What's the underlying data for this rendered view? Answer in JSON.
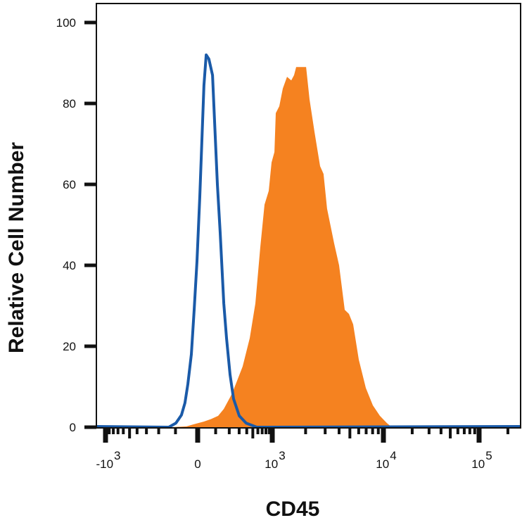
{
  "chart_data": {
    "type": "area",
    "title": "",
    "xlabel": "CD45",
    "ylabel": "Relative Cell Number",
    "x_scale": "biexponential",
    "xlim": [
      -1200,
      200000
    ],
    "ylim": [
      0,
      105
    ],
    "grid": false,
    "y_ticks": [
      0,
      20,
      40,
      60,
      80,
      100
    ],
    "x_ticks": [
      {
        "value": -1000,
        "base": "-10",
        "exp": "3"
      },
      {
        "value": 0,
        "base": "0",
        "exp": ""
      },
      {
        "value": 1000,
        "base": "10",
        "exp": "3"
      },
      {
        "value": 10000,
        "base": "10",
        "exp": "4"
      },
      {
        "value": 100000,
        "base": "10",
        "exp": "5"
      }
    ],
    "series": [
      {
        "style": "filled",
        "color": "#f58220",
        "x": [
          -124,
          -48,
          -18,
          33,
          72,
          116,
          156,
          226,
          343,
          447,
          549,
          655,
          761,
          884,
          975,
          1046,
          1077,
          1158,
          1247,
          1360,
          1485,
          1575,
          1646,
          2022,
          2171,
          2404,
          2700,
          2902,
          3120,
          3613,
          4000,
          4496,
          4907,
          5353,
          6011,
          6950,
          8036,
          9297,
          10890,
          12260
        ],
        "y": [
          0,
          0.2,
          0.7,
          1.4,
          2,
          2.8,
          4.5,
          8.3,
          15,
          22,
          30.6,
          44.5,
          55,
          58.4,
          65.4,
          68,
          77.6,
          79.3,
          83.7,
          86.6,
          85.7,
          87,
          89,
          89,
          81,
          73,
          64.5,
          62.6,
          54,
          45.4,
          40,
          29,
          28,
          25.4,
          16.7,
          9.7,
          5.4,
          2.8,
          1,
          0
        ]
      },
      {
        "style": "outline",
        "color": "#1a5aa8",
        "x": [
          -136,
          -98,
          -71,
          -55,
          -42,
          -27,
          -15,
          -3,
          11,
          22,
          33,
          45,
          60,
          81,
          93,
          111,
          130,
          156,
          177,
          207,
          240,
          301,
          392,
          576
        ],
        "y": [
          0,
          1,
          3,
          6,
          10.6,
          18,
          29,
          41,
          57,
          71,
          84.5,
          92,
          91,
          87,
          76,
          60,
          48,
          30.6,
          22,
          13,
          7,
          2.8,
          1,
          0
        ]
      }
    ]
  }
}
